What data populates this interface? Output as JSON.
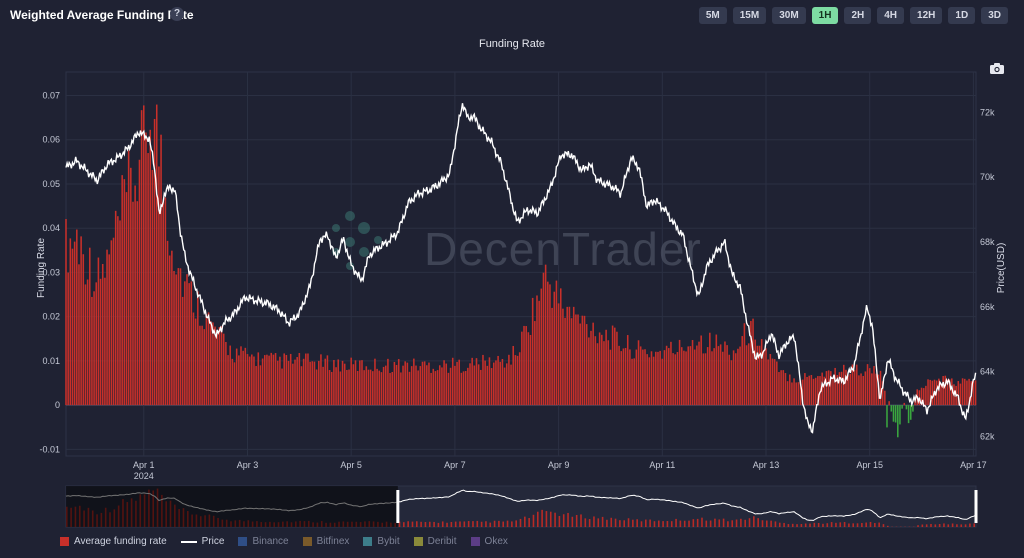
{
  "header": {
    "title": "Weighted Average Funding Rate",
    "help_label": "?"
  },
  "timeframes": [
    {
      "label": "5M",
      "active": false
    },
    {
      "label": "15M",
      "active": false
    },
    {
      "label": "30M",
      "active": false
    },
    {
      "label": "1H",
      "active": true
    },
    {
      "label": "2H",
      "active": false
    },
    {
      "label": "4H",
      "active": false
    },
    {
      "label": "12H",
      "active": false
    },
    {
      "label": "1D",
      "active": false
    },
    {
      "label": "3D",
      "active": false
    }
  ],
  "watermark": "DecenTrader",
  "colors": {
    "background": "#1f2233",
    "bar_positive": "#c8302a",
    "bar_negative": "#3aa63f",
    "price_line": "#ffffff",
    "active_tf": "#7ddca3"
  },
  "legend": [
    {
      "label": "Average funding rate",
      "color": "#c8302a",
      "type": "bar",
      "active": true
    },
    {
      "label": "Price",
      "color": "#ffffff",
      "type": "line",
      "active": true
    },
    {
      "label": "Binance",
      "color": "#2f4e86",
      "type": "bar",
      "active": false
    },
    {
      "label": "Bitfinex",
      "color": "#7a5a2a",
      "type": "bar",
      "active": false
    },
    {
      "label": "Bybit",
      "color": "#3d7d8a",
      "type": "bar",
      "active": false
    },
    {
      "label": "Deribit",
      "color": "#8a8a3a",
      "type": "bar",
      "active": false
    },
    {
      "label": "Okex",
      "color": "#5c3d86",
      "type": "bar",
      "active": false
    }
  ],
  "chart_data": {
    "type": "bar",
    "title": "Funding Rate",
    "ylabel": "Funding Rate",
    "y2label": "Price(USD)",
    "ylim": [
      -0.0115,
      0.0735
    ],
    "y2lim": [
      61400,
      73000
    ],
    "yticks": [
      -0.01,
      0,
      0.01,
      0.02,
      0.03,
      0.04,
      0.05,
      0.06,
      0.07
    ],
    "ytick_labels": [
      "-0.01",
      "0",
      "0.01",
      "0.02",
      "0.03",
      "0.04",
      "0.05",
      "0.06",
      "0.07"
    ],
    "y2ticks": [
      62000,
      64000,
      66000,
      68000,
      70000,
      72000
    ],
    "y2tick_labels": [
      "62k",
      "64k",
      "66k",
      "68k",
      "70k",
      "72k"
    ],
    "xlim": [
      -1.5,
      16.05
    ],
    "xticks": [
      0,
      2,
      4,
      6,
      8,
      10,
      12,
      14,
      16
    ],
    "xtick_labels": [
      "Apr 1",
      "Apr 3",
      "Apr 5",
      "Apr 7",
      "Apr 9",
      "Apr 11",
      "Apr 13",
      "Apr 15",
      "Apr 17"
    ],
    "xtick_sublabel": "2024",
    "x_unit": "days from Apr 1 2024",
    "funding_anchors": [
      [
        -1.5,
        0.036
      ],
      [
        -1.3,
        0.038
      ],
      [
        -1.1,
        0.033
      ],
      [
        -0.9,
        0.028
      ],
      [
        -0.7,
        0.032
      ],
      [
        -0.5,
        0.04
      ],
      [
        -0.3,
        0.048
      ],
      [
        -0.1,
        0.053
      ],
      [
        0.0,
        0.058
      ],
      [
        0.1,
        0.065
      ],
      [
        0.2,
        0.064
      ],
      [
        0.3,
        0.058
      ],
      [
        0.4,
        0.048
      ],
      [
        0.5,
        0.04
      ],
      [
        0.7,
        0.03
      ],
      [
        0.9,
        0.025
      ],
      [
        1.1,
        0.022
      ],
      [
        1.3,
        0.018
      ],
      [
        1.5,
        0.015
      ],
      [
        1.7,
        0.012
      ],
      [
        2.0,
        0.011
      ],
      [
        2.5,
        0.01
      ],
      [
        3.0,
        0.01
      ],
      [
        4.0,
        0.009
      ],
      [
        5.0,
        0.009
      ],
      [
        6.0,
        0.009
      ],
      [
        7.0,
        0.01
      ],
      [
        7.2,
        0.012
      ],
      [
        7.4,
        0.018
      ],
      [
        7.6,
        0.024
      ],
      [
        7.75,
        0.029
      ],
      [
        7.9,
        0.026
      ],
      [
        8.1,
        0.022
      ],
      [
        8.3,
        0.02
      ],
      [
        8.6,
        0.018
      ],
      [
        8.9,
        0.016
      ],
      [
        9.2,
        0.014
      ],
      [
        9.6,
        0.012
      ],
      [
        10.0,
        0.012
      ],
      [
        10.4,
        0.013
      ],
      [
        10.6,
        0.015
      ],
      [
        11.0,
        0.014
      ],
      [
        11.4,
        0.012
      ],
      [
        11.6,
        0.016
      ],
      [
        11.8,
        0.017
      ],
      [
        12.0,
        0.012
      ],
      [
        12.3,
        0.007
      ],
      [
        12.6,
        0.006
      ],
      [
        13.0,
        0.007
      ],
      [
        13.5,
        0.008
      ],
      [
        14.0,
        0.008
      ],
      [
        14.2,
        0.007
      ],
      [
        14.35,
        0.002
      ],
      [
        14.45,
        -0.003
      ],
      [
        14.55,
        -0.006
      ],
      [
        14.65,
        0.001
      ],
      [
        14.8,
        -0.004
      ],
      [
        14.9,
        0.003
      ],
      [
        15.1,
        0.005
      ],
      [
        15.4,
        0.006
      ],
      [
        15.7,
        0.005
      ],
      [
        16.05,
        0.006
      ]
    ],
    "price_anchors": [
      [
        -1.5,
        70300
      ],
      [
        -1.3,
        70500
      ],
      [
        -1.1,
        70200
      ],
      [
        -0.9,
        69900
      ],
      [
        -0.7,
        70400
      ],
      [
        -0.5,
        70600
      ],
      [
        -0.3,
        70900
      ],
      [
        -0.1,
        71400
      ],
      [
        0.1,
        71200
      ],
      [
        0.2,
        70400
      ],
      [
        0.3,
        68800
      ],
      [
        0.4,
        69500
      ],
      [
        0.5,
        69700
      ],
      [
        0.6,
        69600
      ],
      [
        0.7,
        68400
      ],
      [
        0.8,
        67500
      ],
      [
        0.95,
        66800
      ],
      [
        1.1,
        66200
      ],
      [
        1.25,
        65600
      ],
      [
        1.4,
        65100
      ],
      [
        1.55,
        65500
      ],
      [
        1.75,
        65800
      ],
      [
        1.95,
        66300
      ],
      [
        2.15,
        66200
      ],
      [
        2.4,
        66100
      ],
      [
        2.6,
        65900
      ],
      [
        2.8,
        65500
      ],
      [
        3.0,
        65800
      ],
      [
        3.2,
        66600
      ],
      [
        3.4,
        68100
      ],
      [
        3.55,
        68200
      ],
      [
        3.7,
        67500
      ],
      [
        3.85,
        68100
      ],
      [
        4.0,
        67300
      ],
      [
        4.2,
        66800
      ],
      [
        4.35,
        67600
      ],
      [
        4.5,
        67800
      ],
      [
        4.7,
        68000
      ],
      [
        4.9,
        68300
      ],
      [
        5.1,
        69200
      ],
      [
        5.3,
        69500
      ],
      [
        5.5,
        69600
      ],
      [
        5.7,
        69800
      ],
      [
        5.9,
        70100
      ],
      [
        6.05,
        71500
      ],
      [
        6.15,
        72300
      ],
      [
        6.25,
        71800
      ],
      [
        6.35,
        71900
      ],
      [
        6.5,
        71500
      ],
      [
        6.7,
        71100
      ],
      [
        6.9,
        70400
      ],
      [
        7.05,
        69500
      ],
      [
        7.2,
        68600
      ],
      [
        7.4,
        69000
      ],
      [
        7.6,
        68900
      ],
      [
        7.85,
        69700
      ],
      [
        8.05,
        70700
      ],
      [
        8.25,
        70700
      ],
      [
        8.45,
        70200
      ],
      [
        8.6,
        70400
      ],
      [
        8.75,
        69900
      ],
      [
        8.9,
        69800
      ],
      [
        9.05,
        69700
      ],
      [
        9.2,
        69500
      ],
      [
        9.4,
        70600
      ],
      [
        9.55,
        70300
      ],
      [
        9.7,
        69100
      ],
      [
        9.85,
        69300
      ],
      [
        10.05,
        69000
      ],
      [
        10.25,
        68500
      ],
      [
        10.4,
        68200
      ],
      [
        10.55,
        67200
      ],
      [
        10.7,
        66300
      ],
      [
        10.85,
        67200
      ],
      [
        11.0,
        67600
      ],
      [
        11.2,
        68000
      ],
      [
        11.35,
        67000
      ],
      [
        11.5,
        66600
      ],
      [
        11.65,
        65400
      ],
      [
        11.8,
        64400
      ],
      [
        11.95,
        64600
      ],
      [
        12.1,
        65200
      ],
      [
        12.25,
        64500
      ],
      [
        12.4,
        64900
      ],
      [
        12.55,
        65100
      ],
      [
        12.7,
        63200
      ],
      [
        12.8,
        62400
      ],
      [
        12.9,
        62200
      ],
      [
        13.05,
        63500
      ],
      [
        13.3,
        63800
      ],
      [
        13.5,
        63700
      ],
      [
        13.7,
        64200
      ],
      [
        13.85,
        65300
      ],
      [
        13.95,
        66000
      ],
      [
        14.05,
        65400
      ],
      [
        14.2,
        63100
      ],
      [
        14.35,
        64400
      ],
      [
        14.5,
        63800
      ],
      [
        14.65,
        63400
      ],
      [
        14.8,
        63100
      ],
      [
        14.95,
        63200
      ],
      [
        15.1,
        62800
      ],
      [
        15.3,
        63500
      ],
      [
        15.5,
        63700
      ],
      [
        15.7,
        63200
      ],
      [
        15.85,
        62500
      ],
      [
        16.0,
        63700
      ],
      [
        16.05,
        63900
      ]
    ],
    "navigator": {
      "range_start_day": 4.9,
      "range_end_day": 16.05
    },
    "grid": true,
    "legend_position": "bottom-left"
  }
}
